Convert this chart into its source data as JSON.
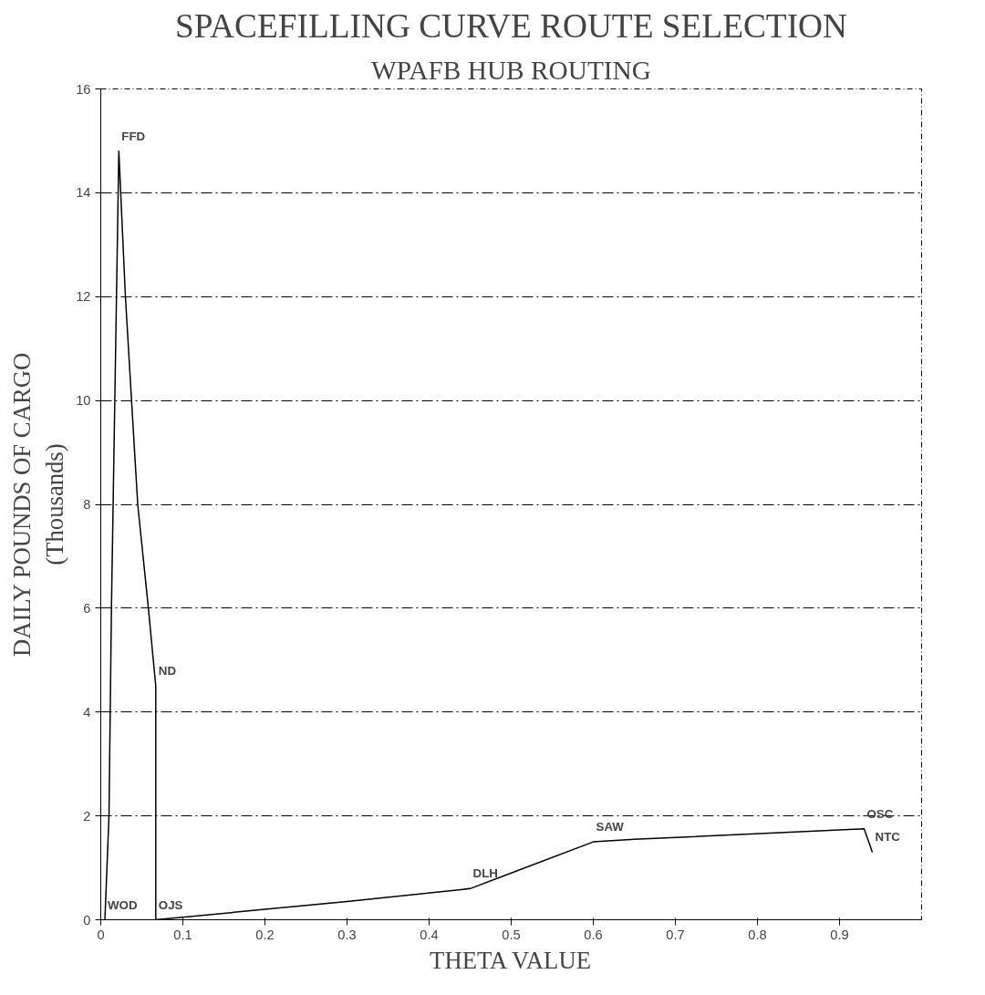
{
  "chart_data": {
    "type": "line",
    "title": "SPACEFILLING CURVE ROUTE SELECTION",
    "subtitle": "WPAFB HUB ROUTING",
    "xlabel": "THETA VALUE",
    "ylabel": "DAILY POUNDS OF CARGO\n(Thousands)",
    "x": [
      0.005,
      0.01,
      0.013,
      0.022,
      0.03,
      0.045,
      0.058,
      0.067,
      0.067,
      0.2,
      0.3,
      0.45,
      0.5,
      0.6,
      0.65,
      0.93,
      0.94
    ],
    "series": [
      {
        "color": "#000000",
        "values": [
          0,
          2,
          6,
          14.8,
          12,
          8,
          6,
          4.5,
          0,
          0.2,
          0.35,
          0.6,
          0.9,
          1.5,
          1.55,
          1.75,
          1.3
        ]
      }
    ],
    "xlim": [
      0,
      1
    ],
    "ylim": [
      0,
      16
    ],
    "xticks": [
      0,
      0.1,
      0.2,
      0.3,
      0.4,
      0.5,
      0.6,
      0.7,
      0.8,
      0.9
    ],
    "yticks": [
      0,
      2,
      4,
      6,
      8,
      10,
      12,
      14,
      16
    ],
    "grid": "y",
    "marker": "none",
    "line_style": "solid",
    "annotations": [
      {
        "text": "WOD",
        "x": 0.005,
        "y": 0
      },
      {
        "text": "FFD",
        "x": 0.022,
        "y": 14.8
      },
      {
        "text": "ND",
        "x": 0.067,
        "y": 4.5
      },
      {
        "text": "OJS",
        "x": 0.067,
        "y": 0
      },
      {
        "text": "DLH",
        "x": 0.45,
        "y": 0.6
      },
      {
        "text": "SAW",
        "x": 0.6,
        "y": 1.5
      },
      {
        "text": "OSC",
        "x": 0.93,
        "y": 1.75
      },
      {
        "text": "NTC",
        "x": 0.94,
        "y": 1.3
      }
    ]
  }
}
